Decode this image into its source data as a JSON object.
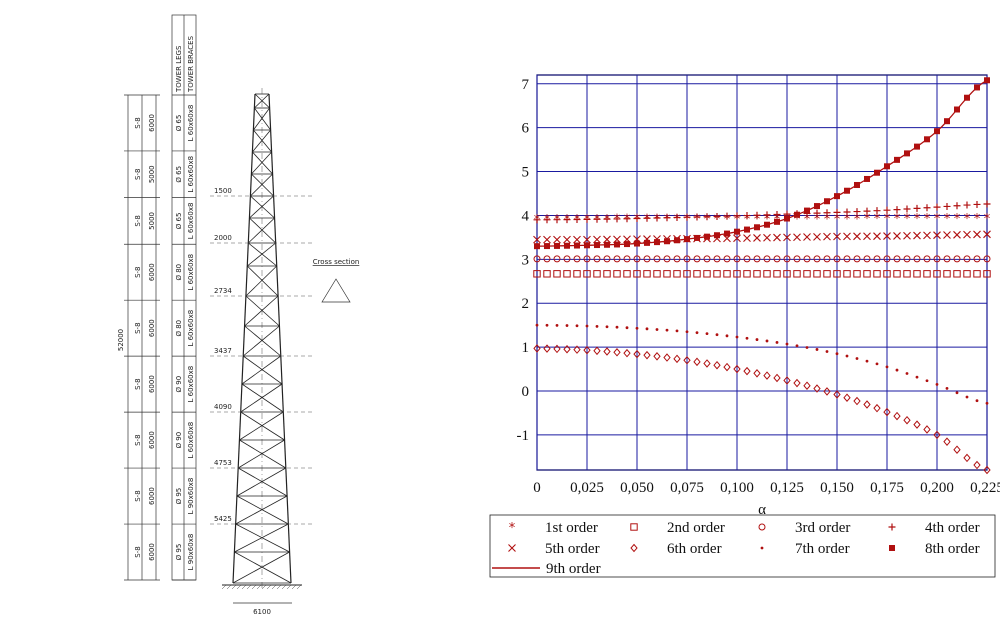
{
  "tower": {
    "header": {
      "legs": "TOWER LEGS",
      "braces": "TOWER BRACES"
    },
    "total_height": "52000",
    "segments": [
      {
        "height": "6000",
        "steel": "S-8",
        "leg": "Ø 65",
        "brace": "L 60x60x8"
      },
      {
        "height": "5000",
        "steel": "S-8",
        "leg": "Ø 65",
        "brace": "L 60x60x8"
      },
      {
        "height": "5000",
        "steel": "S-8",
        "leg": "Ø 65",
        "brace": "L 60x60x8"
      },
      {
        "height": "6000",
        "steel": "S-8",
        "leg": "Ø 80",
        "brace": "L 60x60x8"
      },
      {
        "height": "6000",
        "steel": "S-8",
        "leg": "Ø 80",
        "brace": "L 60x60x8"
      },
      {
        "height": "6000",
        "steel": "S-8",
        "leg": "Ø 90",
        "brace": "L 60x60x8"
      },
      {
        "height": "6000",
        "steel": "S-8",
        "leg": "Ø 90",
        "brace": "L 60x60x8"
      },
      {
        "height": "6000",
        "steel": "S-8",
        "leg": "Ø 95",
        "brace": "L 90x60x8"
      },
      {
        "height": "6000",
        "steel": "S-8",
        "leg": "Ø 95",
        "brace": "L 90x60x8"
      }
    ],
    "width_labels": [
      "1500",
      "2000",
      "2734",
      "3437",
      "4090",
      "4753",
      "5425"
    ],
    "base_width": "6100",
    "cross_section_label": "Cross section"
  },
  "chart_data": {
    "type": "scatter",
    "xlabel": "α",
    "xlim": [
      0,
      0.225
    ],
    "ylim": [
      -1.8,
      7.2
    ],
    "x_ticks": [
      "0",
      "0,025",
      "0,050",
      "0,075",
      "0,100",
      "0,125",
      "0,150",
      "0,175",
      "0,200",
      "0,225"
    ],
    "y_ticks": [
      "-1",
      "0",
      "1",
      "2",
      "3",
      "4",
      "5",
      "6",
      "7"
    ],
    "grid": true,
    "legend_position": "bottom",
    "x": [
      0,
      0.025,
      0.05,
      0.075,
      0.1,
      0.125,
      0.15,
      0.175,
      0.2,
      0.225
    ],
    "series": [
      {
        "name": "1st order",
        "marker": "star",
        "values": [
          3.92,
          3.92,
          3.93,
          3.93,
          3.93,
          3.93,
          3.93,
          3.94,
          3.94,
          3.94
        ]
      },
      {
        "name": "2nd order",
        "marker": "square",
        "values": [
          2.67,
          2.67,
          2.67,
          2.67,
          2.67,
          2.67,
          2.67,
          2.67,
          2.67,
          2.67
        ]
      },
      {
        "name": "3rd order",
        "marker": "circle",
        "values": [
          3.01,
          3.01,
          3.01,
          3.01,
          3.01,
          3.01,
          3.01,
          3.01,
          3.01,
          3.01
        ]
      },
      {
        "name": "4th order",
        "marker": "plus",
        "values": [
          3.9,
          3.91,
          3.93,
          3.96,
          3.99,
          4.03,
          4.07,
          4.12,
          4.19,
          4.26
        ]
      },
      {
        "name": "5th order",
        "marker": "x",
        "values": [
          3.45,
          3.45,
          3.46,
          3.47,
          3.48,
          3.5,
          3.52,
          3.53,
          3.55,
          3.57
        ]
      },
      {
        "name": "6th order",
        "marker": "diamond",
        "values": [
          0.97,
          0.93,
          0.84,
          0.7,
          0.5,
          0.24,
          -0.08,
          -0.48,
          -1.0,
          -1.8
        ]
      },
      {
        "name": "7th order",
        "marker": "dot",
        "values": [
          1.5,
          1.48,
          1.43,
          1.35,
          1.23,
          1.07,
          0.85,
          0.55,
          0.15,
          -0.28
        ]
      },
      {
        "name": "8th order",
        "marker": "filled-square",
        "values": [
          3.3,
          3.32,
          3.36,
          3.46,
          3.63,
          3.93,
          4.44,
          5.12,
          5.92,
          7.08
        ]
      },
      {
        "name": "9th order",
        "marker": "line",
        "values": [
          3.3,
          3.32,
          3.36,
          3.46,
          3.63,
          3.93,
          4.44,
          5.12,
          5.92,
          7.08
        ]
      }
    ]
  }
}
